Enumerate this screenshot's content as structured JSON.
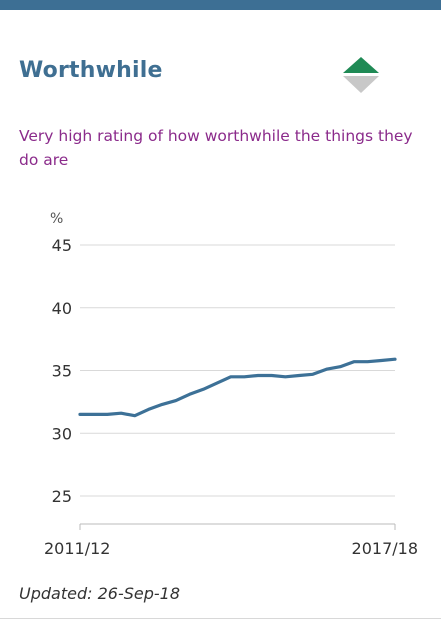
{
  "card": {
    "title": "Worthwhile",
    "subtitle": "Very high rating of how worthwhile the things they do are",
    "updated": "Updated: 26-Sep-18",
    "trend_icon": "up-down-diamond-icon",
    "colors": {
      "accent_bar": "#3d6f94",
      "title": "#3f6f92",
      "subtitle": "#8b2b8b",
      "line": "#3d7197",
      "arrow_up": "#1f8a55",
      "arrow_down": "#c8c8c8"
    }
  },
  "chart_data": {
    "type": "line",
    "ylabel": "%",
    "ylim": [
      25,
      45
    ],
    "yticks": [
      45,
      40,
      35,
      30,
      25
    ],
    "x_tick_labels": [
      "2011/12",
      "2017/18"
    ],
    "grid": true,
    "series": [
      {
        "values": [
          31.5,
          31.5,
          31.5,
          31.6,
          31.4,
          31.9,
          32.3,
          32.6,
          33.1,
          33.5,
          34.0,
          34.5,
          34.5,
          34.6,
          34.6,
          34.5,
          34.6,
          34.7,
          35.1,
          35.3,
          35.7,
          35.7,
          35.8,
          35.9
        ]
      }
    ]
  }
}
